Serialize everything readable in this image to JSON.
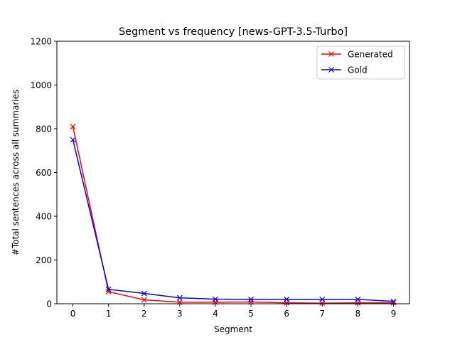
{
  "chart_data": {
    "type": "line",
    "title": "Segment vs frequency [news-GPT-3.5-Turbo]",
    "xlabel": "Segment",
    "ylabel": "#Total sentences across all summaries",
    "x": [
      0,
      1,
      2,
      3,
      4,
      5,
      6,
      7,
      8,
      9
    ],
    "xlim": [
      -0.45,
      9.45
    ],
    "ylim": [
      0,
      1200
    ],
    "yticks": [
      0,
      200,
      400,
      600,
      800,
      1000,
      1200
    ],
    "xticks": [
      0,
      1,
      2,
      3,
      4,
      5,
      6,
      7,
      8,
      9
    ],
    "grid": false,
    "legend_position": "top-right",
    "marker": "x",
    "series": [
      {
        "name": "Generated",
        "color": "#ff0000",
        "values": [
          810,
          55,
          18,
          7,
          7,
          8,
          4,
          3,
          4,
          4
        ]
      },
      {
        "name": "Gold",
        "color": "#0000ff",
        "values": [
          750,
          66,
          47,
          27,
          21,
          20,
          20,
          20,
          20,
          11
        ]
      }
    ]
  }
}
